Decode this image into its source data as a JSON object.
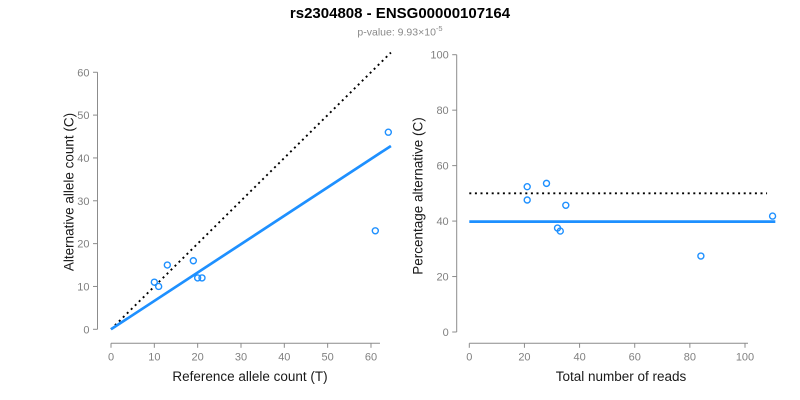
{
  "title": "rs2304808 - ENSG00000107164",
  "subtitle_base": "p-value: 9.93×10",
  "subtitle_exponent": "-5",
  "colors": {
    "accent_blue": "#1E90FF",
    "dotted_black": "#000000",
    "axis_gray": "#8c8c8c",
    "tick_label_gray": "#808080"
  },
  "chart_data": [
    {
      "type": "scatter",
      "xlabel": "Reference allele count (T)",
      "ylabel": "Alternative allele count (C)",
      "xticks": [
        0,
        10,
        20,
        30,
        40,
        50,
        60
      ],
      "yticks": [
        0,
        10,
        20,
        30,
        40,
        50,
        60
      ],
      "xlim": [
        0,
        64.6
      ],
      "ylim": [
        0,
        64.6
      ],
      "grid": false,
      "legend": "none",
      "point_color": "#1E90FF",
      "points": [
        [
          10,
          11
        ],
        [
          11,
          10
        ],
        [
          13,
          15
        ],
        [
          19,
          16
        ],
        [
          20,
          12
        ],
        [
          21,
          12
        ],
        [
          61,
          23
        ],
        [
          64,
          46
        ]
      ],
      "lines": [
        {
          "name": "identity-line",
          "style": "dotted",
          "color": "#000000",
          "points": [
            [
              0,
              0
            ],
            [
              64.6,
              64.6
            ]
          ]
        },
        {
          "name": "fit-line",
          "style": "solid",
          "color": "#1E90FF",
          "points": [
            [
              0,
              0
            ],
            [
              64.6,
              42.8
            ]
          ]
        }
      ]
    },
    {
      "type": "scatter",
      "xlabel": "Total number of reads",
      "ylabel": "Percentage alternative (C)",
      "xticks": [
        0,
        20,
        40,
        60,
        80,
        100
      ],
      "yticks": [
        0,
        20,
        40,
        60,
        80,
        100
      ],
      "xlim": [
        0,
        112
      ],
      "ylim": [
        0,
        100
      ],
      "grid": false,
      "legend": "none",
      "point_color": "#1E90FF",
      "points": [
        [
          21,
          52.4
        ],
        [
          21,
          47.6
        ],
        [
          28,
          53.6
        ],
        [
          32,
          37.5
        ],
        [
          33,
          36.4
        ],
        [
          35,
          45.7
        ],
        [
          84,
          27.4
        ],
        [
          110,
          41.8
        ]
      ],
      "lines": [
        {
          "name": "expected-50pct-line",
          "style": "dotted",
          "color": "#000000",
          "points": [
            [
              0,
              50
            ],
            [
              108,
              50
            ]
          ]
        },
        {
          "name": "mean-pct-line",
          "style": "solid",
          "color": "#1E90FF",
          "points": [
            [
              0,
              39.8
            ],
            [
              111,
              39.8
            ]
          ]
        }
      ]
    }
  ]
}
